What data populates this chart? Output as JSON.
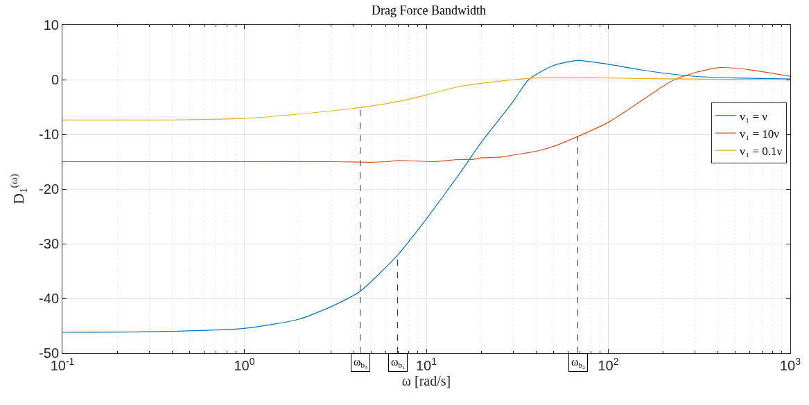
{
  "chart_data": {
    "type": "line",
    "title": "Drag Force Bandwidth",
    "xlabel": "ω [rad/s]",
    "ylabel": "D$_{1}$$^{(ω)}$",
    "log": "x",
    "grid": true,
    "legend": "right",
    "xlim": [
      0.1,
      1000
    ],
    "ylim": [
      -50,
      10
    ],
    "xticks": [
      {
        "value": 0.1,
        "label": "10$^{-1}$"
      },
      {
        "value": 1,
        "label": "10$^{0}$"
      },
      {
        "value": 10,
        "label": "10$^{1}$"
      },
      {
        "value": 100,
        "label": "10$^{2}$"
      },
      {
        "value": 1000,
        "label": "10$^{3}$"
      }
    ],
    "yticks": [
      -50,
      -40,
      -30,
      -20,
      -10,
      0,
      10
    ],
    "series": [
      {
        "name": "v₁ = ν",
        "color": "#0072bd",
        "x": [
          0.1,
          0.3,
          1,
          2,
          3,
          4.33,
          6.95,
          8.6,
          10,
          15,
          17,
          20,
          30,
          36.5,
          50,
          68,
          100,
          150,
          200,
          300,
          500,
          1000
        ],
        "values": [
          -46.2,
          -46.1,
          -45.5,
          -43.8,
          -41.5,
          -38.7,
          -32.1,
          -28.3,
          -25.5,
          -17.5,
          -14.9,
          -11.5,
          -4,
          0,
          2.6,
          3.5,
          2.8,
          1.8,
          1.2,
          0.6,
          0.3,
          0.1
        ]
      },
      {
        "name": "v₁ = 10ν",
        "color": "#d95319",
        "x": [
          0.1,
          1,
          3,
          5,
          6,
          7,
          9,
          11,
          13,
          15,
          18,
          20,
          25,
          30,
          40,
          50,
          68,
          100,
          150,
          200,
          231,
          300,
          408,
          600,
          1000
        ],
        "values": [
          -15,
          -15,
          -15,
          -15.1,
          -15,
          -14.8,
          -14.9,
          -15,
          -14.8,
          -14.6,
          -14.6,
          -14.3,
          -14.2,
          -13.8,
          -13.1,
          -12.2,
          -10.4,
          -7.8,
          -4,
          -1.2,
          0,
          1.3,
          2.2,
          1.8,
          0.6
        ]
      },
      {
        "name": "v₁ = 0.1ν",
        "color": "#edb120",
        "x": [
          0.1,
          0.3,
          1,
          2,
          4.33,
          7,
          10,
          15,
          25,
          40,
          70,
          150,
          300,
          1000
        ],
        "values": [
          -7.4,
          -7.4,
          -7.1,
          -6.3,
          -5.1,
          -4,
          -2.8,
          -1.3,
          -0.3,
          0.3,
          0.4,
          0.2,
          0.1,
          0
        ]
      }
    ],
    "annotations": [
      {
        "text": "ω$_{b₃}$",
        "x": 4.33,
        "y": -5.1
      },
      {
        "text": "ω$_{b₁}$",
        "x": 6.95,
        "y": -32.1
      },
      {
        "text": "ω$_{b₂}$",
        "x": 68,
        "y": -10.4
      }
    ]
  }
}
